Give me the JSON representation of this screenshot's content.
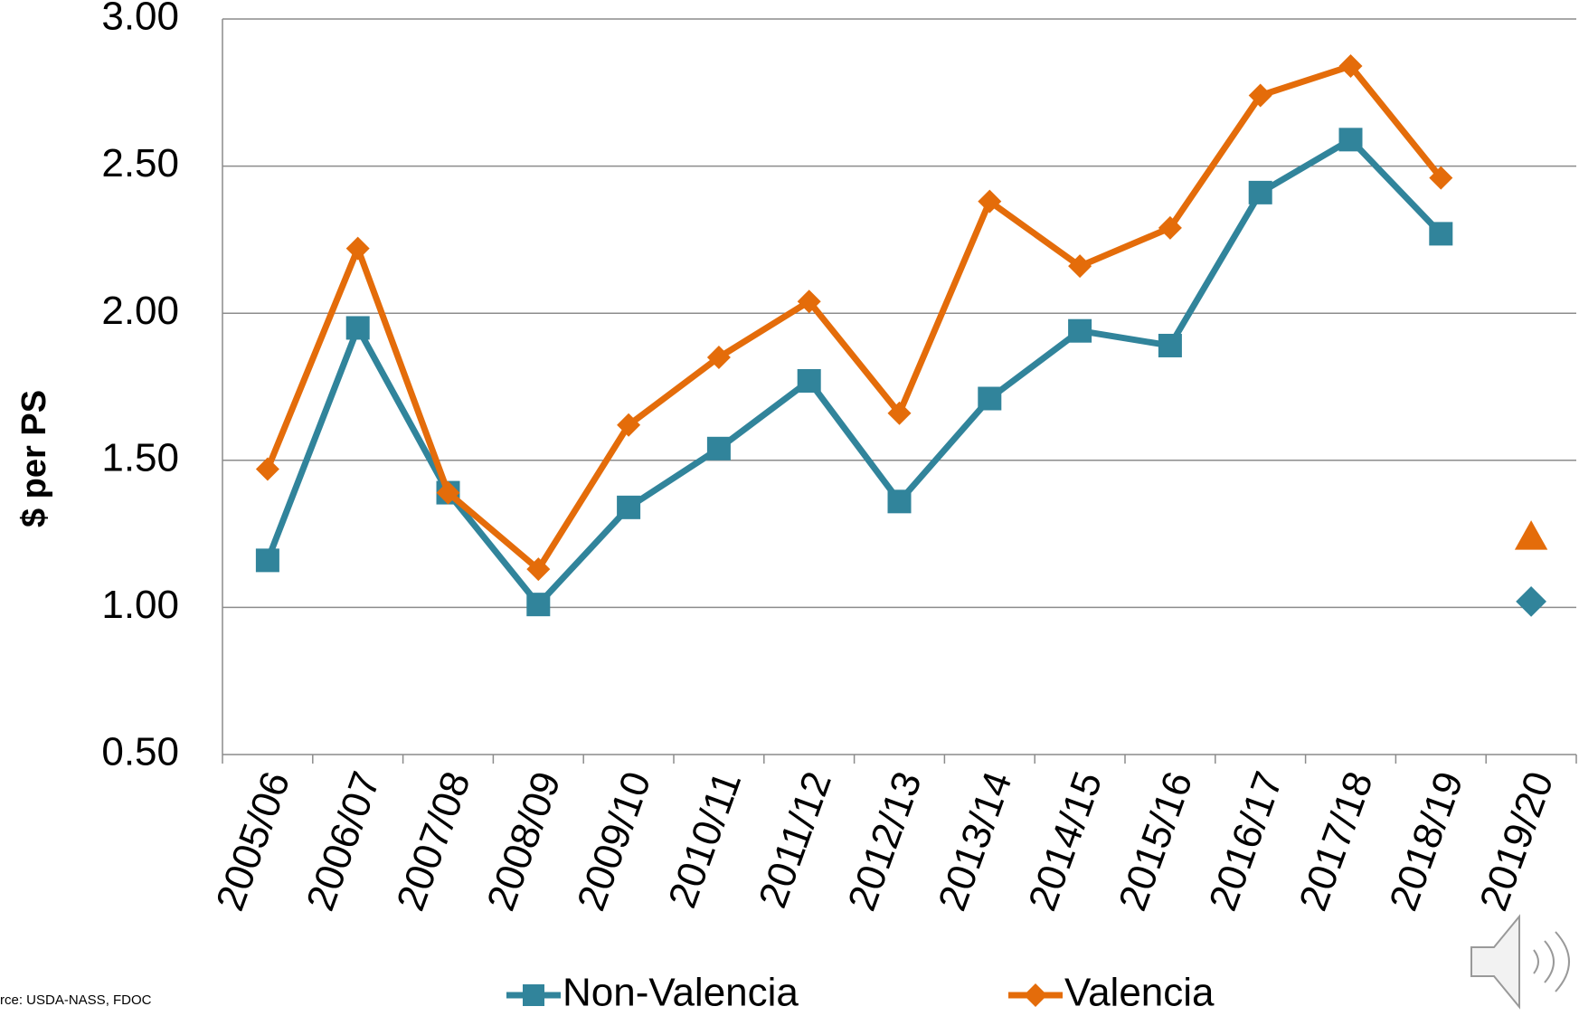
{
  "chart_data": {
    "type": "line",
    "y_axis_label": "$ per PS",
    "source": "rce: USDA-NASS, FDOC",
    "categories": [
      "2005/06",
      "2006/07",
      "2007/08",
      "2008/09",
      "2009/10",
      "2010/11",
      "2011/12",
      "2012/13",
      "2013/14",
      "2014/15",
      "2015/16",
      "2016/17",
      "2017/18",
      "2018/19",
      "2019/20"
    ],
    "series": [
      {
        "name": "Non-Valencia",
        "color": "#31849b",
        "marker": "square",
        "forecast_marker": "diamond",
        "values": [
          1.16,
          1.95,
          1.39,
          1.01,
          1.34,
          1.54,
          1.77,
          1.36,
          1.71,
          1.94,
          1.89,
          2.41,
          2.59,
          2.27,
          null
        ],
        "forecast_values": [
          null,
          null,
          null,
          null,
          null,
          null,
          null,
          null,
          null,
          null,
          null,
          null,
          null,
          null,
          1.02
        ]
      },
      {
        "name": "Valencia",
        "color": "#e46c0a",
        "marker": "diamond",
        "forecast_marker": "triangle",
        "values": [
          1.47,
          2.22,
          1.39,
          1.13,
          1.62,
          1.85,
          2.04,
          1.66,
          2.38,
          2.16,
          2.29,
          2.74,
          2.84,
          2.46,
          null
        ],
        "forecast_values": [
          null,
          null,
          null,
          null,
          null,
          null,
          null,
          null,
          null,
          null,
          null,
          null,
          null,
          null,
          1.24
        ]
      }
    ],
    "ylim": [
      0.5,
      3.0
    ],
    "yticks": [
      {
        "value": 0.5,
        "label": "0.50"
      },
      {
        "value": 1.0,
        "label": "1.00"
      },
      {
        "value": 1.5,
        "label": "1.50"
      },
      {
        "value": 2.0,
        "label": "2.00"
      },
      {
        "value": 2.5,
        "label": "2.50"
      },
      {
        "value": 3.0,
        "label": "3.00"
      }
    ],
    "grid": true,
    "legend": "bottom"
  }
}
